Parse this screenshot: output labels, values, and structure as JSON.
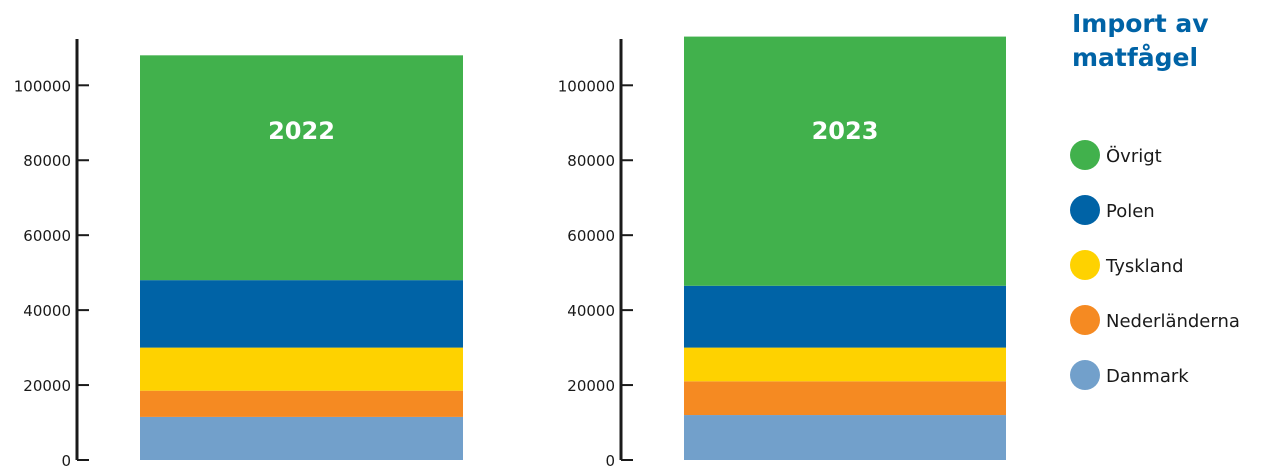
{
  "chart_data": {
    "type": "bar",
    "stacked": true,
    "title_lines": [
      "Import av",
      "matfågel"
    ],
    "title_color": "#0063a6",
    "xlabel": "",
    "ylabel": "",
    "ylim": [
      0,
      112000
    ],
    "yticks": [
      0,
      20000,
      40000,
      60000,
      80000,
      100000
    ],
    "grid": false,
    "legend_position": "right",
    "categories": [
      "2022",
      "2023"
    ],
    "series": [
      {
        "name": "Danmark",
        "color": "#72a0cb",
        "values": [
          11500,
          12000
        ]
      },
      {
        "name": "Nederländerna",
        "color": "#f58a22",
        "values": [
          7000,
          9000
        ]
      },
      {
        "name": "Tyskland",
        "color": "#fed200",
        "values": [
          11500,
          9000
        ]
      },
      {
        "name": "Polen",
        "color": "#0063a6",
        "values": [
          18000,
          16500
        ]
      },
      {
        "name": "Övrigt",
        "color": "#41b14c",
        "values": [
          60000,
          66500
        ]
      }
    ],
    "legend_order": [
      "Övrigt",
      "Polen",
      "Tyskland",
      "Nederländerna",
      "Danmark"
    ]
  }
}
